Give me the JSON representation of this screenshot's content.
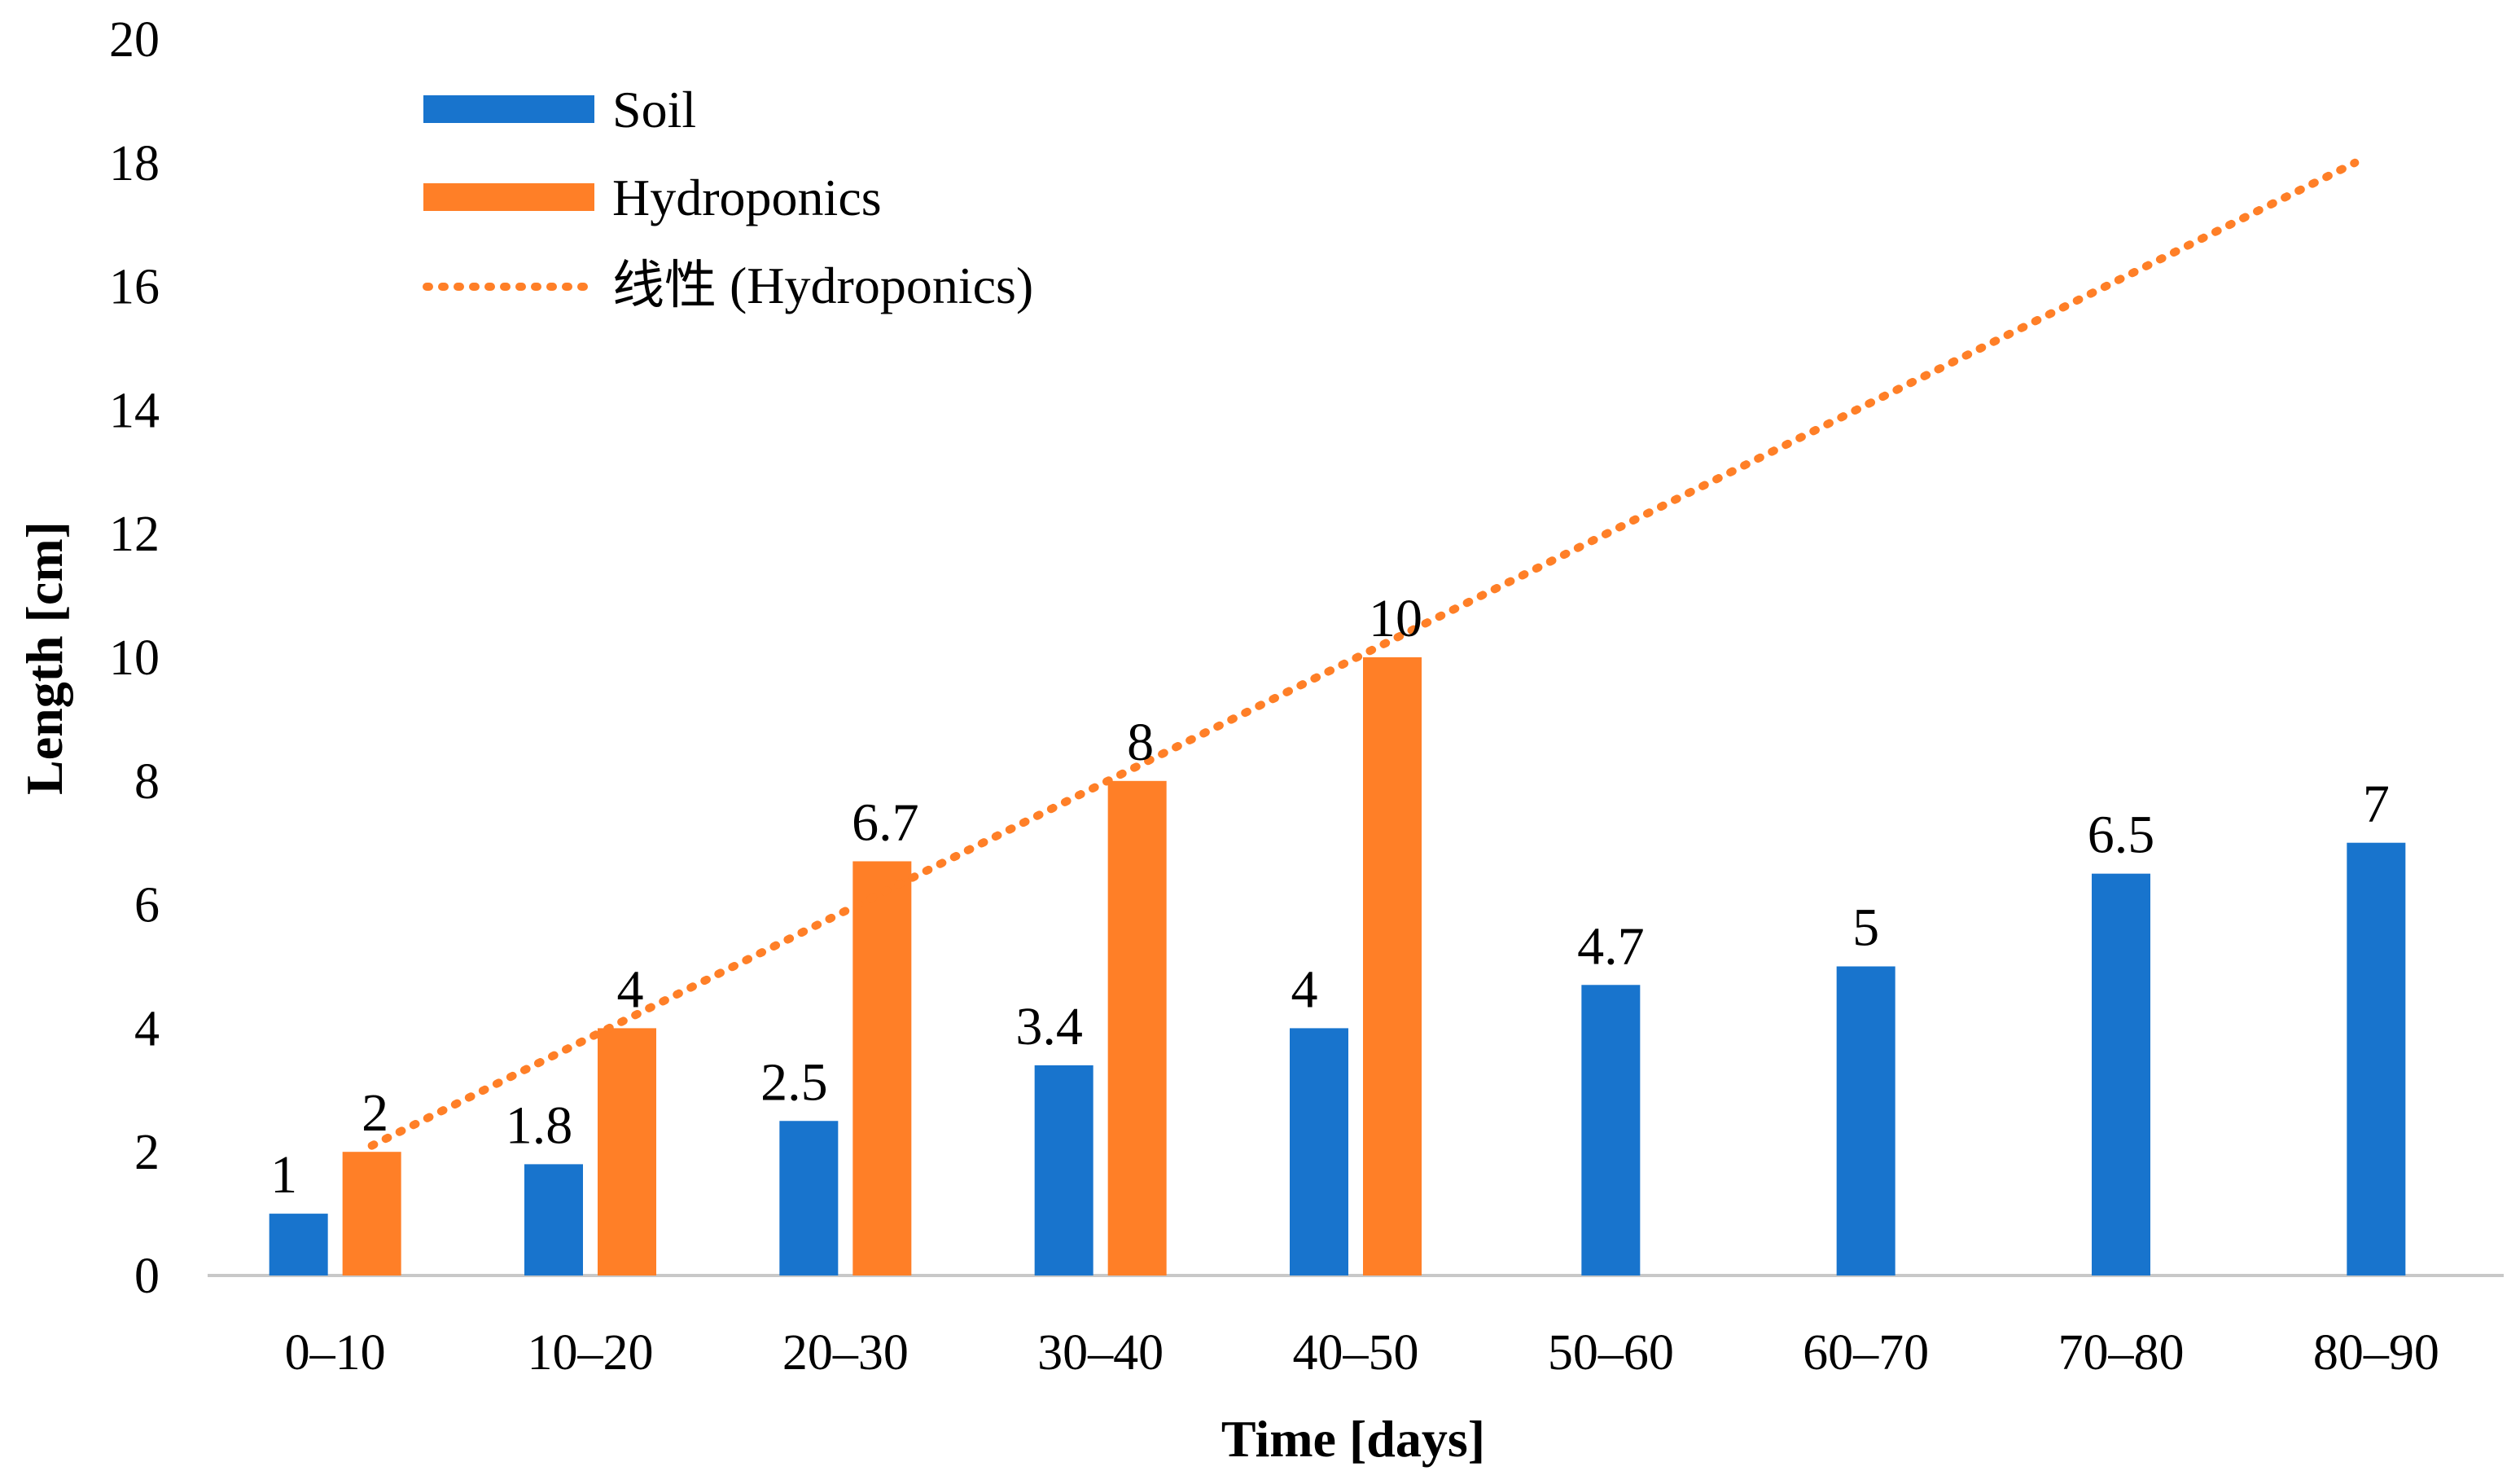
{
  "chart_data": {
    "type": "bar",
    "title": "",
    "xlabel": "Time [days]",
    "ylabel": "Length [cm]",
    "ylim": [
      0,
      20
    ],
    "ytick_step": 2,
    "grid": false,
    "legend_position": "top-left",
    "categories": [
      "0–10",
      "10–20",
      "20–30",
      "30–40",
      "40–50",
      "50–60",
      "60–70",
      "70–80",
      "80–90"
    ],
    "series": [
      {
        "name": "Soil",
        "color": "#1874CD",
        "values": [
          1,
          1.8,
          2.5,
          3.4,
          4,
          4.7,
          5,
          6.5,
          7
        ]
      },
      {
        "name": "Hydroponics",
        "color": "#FF7F27",
        "values": [
          2,
          4,
          6.7,
          8,
          10,
          null,
          null,
          null,
          null
        ]
      }
    ],
    "trendline": {
      "name": "线性 (Hydroponics)",
      "series": "Hydroponics",
      "type": "linear",
      "color": "#FF7F27",
      "style": "dotted",
      "start": 2.1,
      "end": 18
    }
  }
}
